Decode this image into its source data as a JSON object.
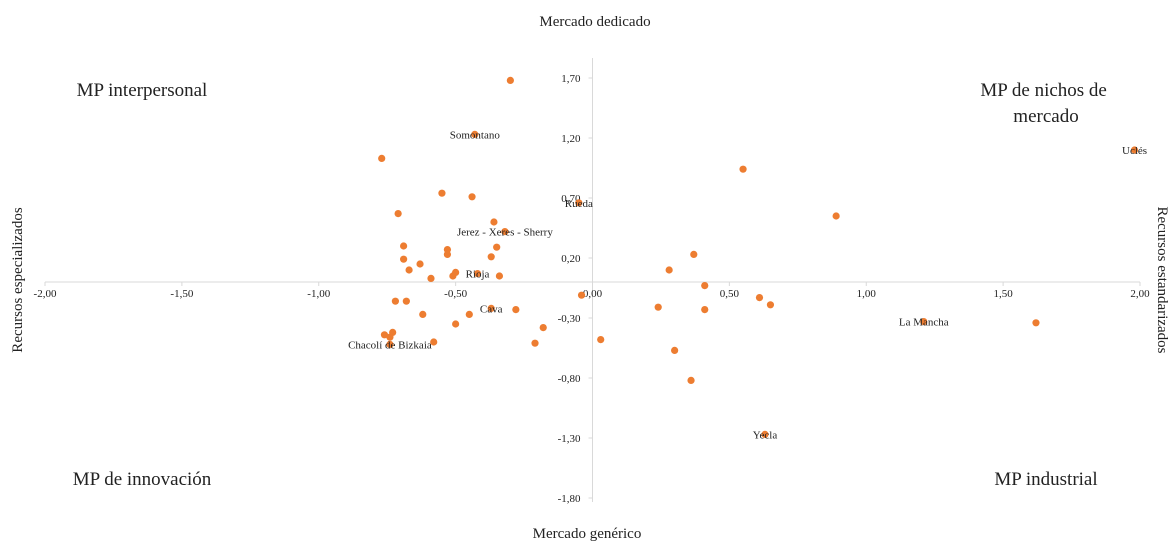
{
  "chart_data": {
    "type": "scatter",
    "xlim": [
      -2.0,
      2.0
    ],
    "ylim": [
      -1.8,
      1.8
    ],
    "x_ticks": [
      "-2,00",
      "-1,50",
      "-1,00",
      "-0,50",
      "0,00",
      "0,50",
      "1,00",
      "1,50",
      "2,00"
    ],
    "y_ticks": [
      "1,70",
      "1,20",
      "0,70",
      "0,20",
      "-0,30",
      "-0,80",
      "-1,30",
      "-1,80"
    ],
    "axis_titles": {
      "top": "Mercado dedicado",
      "bottom": "Mercado genérico",
      "left": "Recursos especializados",
      "right": "Recursos estandarizados"
    },
    "quadrant_labels": {
      "top_left": "MP interpersonal",
      "top_right": "MP de nichos de mercado",
      "bottom_left": "MP de innovación",
      "bottom_right": "MP industrial"
    },
    "marker_color": "#ed7d31",
    "grid": false,
    "labeled_points": [
      {
        "label": "Somontano",
        "x": -0.43,
        "y": 1.23
      },
      {
        "label": "Uclés",
        "x": 1.98,
        "y": 1.1
      },
      {
        "label": "Rueda",
        "x": -0.05,
        "y": 0.66
      },
      {
        "label": "Jerez - Xeres - Sherry",
        "x": -0.32,
        "y": 0.42
      },
      {
        "label": "Rioja",
        "x": -0.42,
        "y": 0.07
      },
      {
        "label": "Cava",
        "x": -0.37,
        "y": -0.22
      },
      {
        "label": "Chacolí de Bizkaia",
        "x": -0.74,
        "y": -0.52
      },
      {
        "label": "La Mancha",
        "x": 1.21,
        "y": -0.33
      },
      {
        "label": "Yecla",
        "x": 0.63,
        "y": -1.27
      }
    ],
    "points": [
      {
        "x": -0.3,
        "y": 1.68
      },
      {
        "x": -0.77,
        "y": 1.03
      },
      {
        "x": -0.55,
        "y": 0.74
      },
      {
        "x": -0.44,
        "y": 0.71
      },
      {
        "x": -0.71,
        "y": 0.57
      },
      {
        "x": -0.36,
        "y": 0.5
      },
      {
        "x": -0.35,
        "y": 0.29
      },
      {
        "x": -0.53,
        "y": 0.27
      },
      {
        "x": -0.53,
        "y": 0.23
      },
      {
        "x": -0.69,
        "y": 0.3
      },
      {
        "x": -0.37,
        "y": 0.21
      },
      {
        "x": -0.69,
        "y": 0.19
      },
      {
        "x": -0.63,
        "y": 0.15
      },
      {
        "x": -0.67,
        "y": 0.1
      },
      {
        "x": -0.5,
        "y": 0.08
      },
      {
        "x": -0.51,
        "y": 0.05
      },
      {
        "x": -0.34,
        "y": 0.05
      },
      {
        "x": -0.59,
        "y": 0.03
      },
      {
        "x": -0.72,
        "y": -0.16
      },
      {
        "x": -0.68,
        "y": -0.16
      },
      {
        "x": -0.62,
        "y": -0.27
      },
      {
        "x": -0.45,
        "y": -0.27
      },
      {
        "x": -0.28,
        "y": -0.23
      },
      {
        "x": -0.5,
        "y": -0.35
      },
      {
        "x": -0.73,
        "y": -0.42
      },
      {
        "x": -0.76,
        "y": -0.44
      },
      {
        "x": -0.74,
        "y": -0.46
      },
      {
        "x": -0.58,
        "y": -0.5
      },
      {
        "x": -0.18,
        "y": -0.38
      },
      {
        "x": -0.21,
        "y": -0.51
      },
      {
        "x": -0.04,
        "y": -0.11
      },
      {
        "x": 0.03,
        "y": -0.48
      },
      {
        "x": 0.24,
        "y": -0.21
      },
      {
        "x": 0.28,
        "y": 0.1
      },
      {
        "x": 0.37,
        "y": 0.23
      },
      {
        "x": 0.41,
        "y": -0.03
      },
      {
        "x": 0.41,
        "y": -0.23
      },
      {
        "x": 0.3,
        "y": -0.57
      },
      {
        "x": 0.36,
        "y": -0.82
      },
      {
        "x": 0.55,
        "y": 0.94
      },
      {
        "x": 0.61,
        "y": -0.13
      },
      {
        "x": 0.65,
        "y": -0.19
      },
      {
        "x": 0.89,
        "y": 0.55
      },
      {
        "x": 1.62,
        "y": -0.34
      }
    ]
  }
}
